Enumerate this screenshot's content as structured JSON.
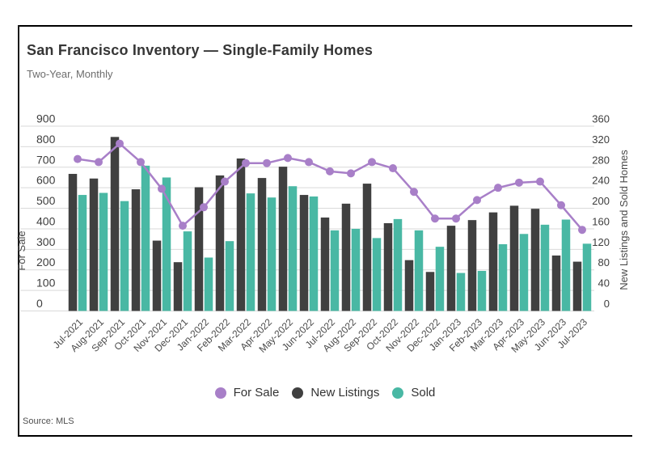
{
  "header": {
    "title": "San Francisco Inventory — Single-Family Homes",
    "subtitle": "Two-Year, Monthly"
  },
  "source": {
    "text": "Source: MLS"
  },
  "colors": {
    "for_sale": "#a87fc8",
    "new_listings": "#404040",
    "sold": "#49b8a4",
    "gridline": "#d9d9d9"
  },
  "legend": [
    {
      "label": "For Sale",
      "color": "#a87fc8"
    },
    {
      "label": "New Listings",
      "color": "#404040"
    },
    {
      "label": "Sold",
      "color": "#49b8a4"
    }
  ],
  "chart_data": {
    "type": "bar",
    "subtype": "grouped-columns-with-line",
    "grid": true,
    "categories": [
      "Jul-2021",
      "Aug-2021",
      "Sep-2021",
      "Oct-2021",
      "Nov-2021",
      "Dec-2021",
      "Jan-2022",
      "Feb-2022",
      "Mar-2022",
      "Apr-2022",
      "May-2022",
      "Jun-2022",
      "Jul-2022",
      "Aug-2022",
      "Sep-2022",
      "Oct-2022",
      "Nov-2022",
      "Dec-2022",
      "Jan-2023",
      "Feb-2023",
      "Mar-2023",
      "Apr-2023",
      "May-2023",
      "Jun-2023",
      "Jul-2023"
    ],
    "series": [
      {
        "name": "For Sale",
        "type": "line",
        "axis": "left",
        "color": "#a87fc8",
        "values": [
          740,
          725,
          815,
          725,
          595,
          415,
          505,
          630,
          720,
          720,
          745,
          725,
          680,
          670,
          725,
          695,
          580,
          450,
          450,
          540,
          600,
          625,
          630,
          515,
          395
        ]
      },
      {
        "name": "New Listings",
        "type": "bar",
        "axis": "right",
        "color": "#404040",
        "values": [
          267,
          258,
          339,
          237,
          137,
          95,
          241,
          264,
          297,
          259,
          281,
          226,
          182,
          209,
          248,
          171,
          99,
          76,
          166,
          177,
          192,
          205,
          199,
          108,
          96
        ]
      },
      {
        "name": "Sold",
        "type": "bar",
        "axis": "right",
        "color": "#49b8a4",
        "values": [
          226,
          230,
          214,
          283,
          260,
          155,
          104,
          136,
          229,
          221,
          243,
          223,
          157,
          160,
          142,
          179,
          157,
          125,
          74,
          78,
          130,
          150,
          168,
          178,
          131
        ]
      }
    ],
    "left_axis": {
      "title": "For Sale",
      "min": 0,
      "max": 900,
      "step": 100,
      "ticks": [
        0,
        100,
        200,
        300,
        400,
        500,
        600,
        700,
        800,
        900
      ]
    },
    "right_axis": {
      "title": "New Listings and Sold Homes",
      "min": 0,
      "max": 360,
      "step": 40,
      "ticks": [
        0,
        40,
        80,
        120,
        160,
        200,
        240,
        280,
        320,
        360
      ]
    }
  }
}
